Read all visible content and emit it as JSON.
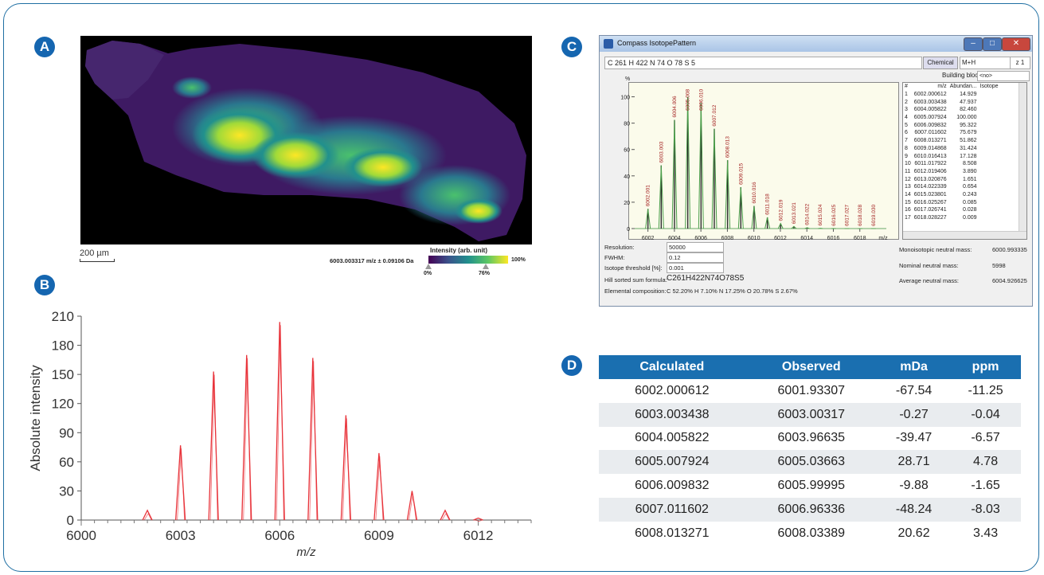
{
  "panel_labels": {
    "a": "A",
    "b": "B",
    "c": "C",
    "d": "D"
  },
  "panel_a": {
    "scale_bar": "200 µm",
    "colorbar_title": "Intensity (arb. unit)",
    "mz_label": "6003.003317 m/z ± 0.09106 Da",
    "tick_min": "0%",
    "tick_mid": "76%",
    "tick_max": "100%",
    "colormap": [
      "#440154",
      "#3b528b",
      "#21908d",
      "#5dc863",
      "#fde725"
    ]
  },
  "chart_data": {
    "type": "line",
    "xlabel": "m/z",
    "ylabel": "Absolute intensity",
    "xlim": [
      6000,
      6013.6
    ],
    "ylim": [
      0,
      210
    ],
    "xticks": [
      "6000",
      "6003",
      "6006",
      "6009",
      "6012"
    ],
    "yticks": [
      "0",
      "30",
      "60",
      "90",
      "120",
      "150",
      "180",
      "210"
    ],
    "color": "#e8333a",
    "series": [
      {
        "x": [
          6002.0,
          6003.0,
          6004.0,
          6005.0,
          6006.0,
          6007.0,
          6008.0,
          6009.0,
          6010.0,
          6011.0,
          6012.0
        ],
        "values": [
          10,
          77,
          153,
          170,
          204,
          167,
          108,
          69,
          30,
          10,
          2
        ]
      }
    ]
  },
  "isotope_window": {
    "title": "Compass IsotopePattern",
    "formula": "C 261 H 422 N 74 O 78 S 5",
    "chemical_button": "Chemical",
    "adduct": "M+H",
    "charge_label": "z",
    "charge": "1",
    "building_block_label": "Building block:",
    "building_block_value": "<no>",
    "plot_ylabel": "%",
    "plot_xlabel": "m/z",
    "plot_xticks": [
      "6002",
      "6004",
      "6006",
      "6008",
      "6010",
      "6012",
      "6014",
      "6016",
      "6018"
    ],
    "plot_yticks": [
      "0",
      "20",
      "40",
      "60",
      "80",
      "100"
    ],
    "stick_labels": [
      "6002.001",
      "6003.003",
      "6004.006",
      "6005.008",
      "6006.010",
      "6007.012",
      "6008.013",
      "6009.015",
      "6010.016",
      "6011.018",
      "6012.019",
      "6013.021",
      "6014.022",
      "6015.024",
      "6016.025",
      "6017.027",
      "6018.028",
      "6019.030"
    ],
    "stick_abundances": [
      14.929,
      47.937,
      82.46,
      100.0,
      95.322,
      75.679,
      51.862,
      31.424,
      17.128,
      8.508,
      3.89,
      1.651,
      0.654,
      0.243,
      0.085,
      0.028,
      0.009,
      0.003
    ],
    "list_headers": [
      "#",
      "m/z",
      "Abundan...",
      "Isotope"
    ],
    "list_rows": [
      [
        "1",
        "6002.000612",
        "14.929"
      ],
      [
        "2",
        "6003.003438",
        "47.937"
      ],
      [
        "3",
        "6004.005822",
        "82.460"
      ],
      [
        "4",
        "6005.007924",
        "100.000"
      ],
      [
        "5",
        "6006.009832",
        "95.322"
      ],
      [
        "6",
        "6007.011602",
        "75.679"
      ],
      [
        "7",
        "6008.013271",
        "51.862"
      ],
      [
        "8",
        "6009.014868",
        "31.424"
      ],
      [
        "9",
        "6010.016413",
        "17.128"
      ],
      [
        "10",
        "6011.017922",
        "8.508"
      ],
      [
        "11",
        "6012.019406",
        "3.890"
      ],
      [
        "12",
        "6013.020876",
        "1.651"
      ],
      [
        "13",
        "6014.022339",
        "0.654"
      ],
      [
        "14",
        "6015.023801",
        "0.243"
      ],
      [
        "15",
        "6016.025267",
        "0.085"
      ],
      [
        "16",
        "6017.026741",
        "0.028"
      ],
      [
        "17",
        "6018.028227",
        "0.009"
      ]
    ],
    "params": {
      "resolution_label": "Resolution:",
      "resolution": "50000",
      "fwhm_label": "FWHM:",
      "fwhm": "0.12",
      "threshold_label": "Isotope threshold [%]:",
      "threshold": "0.001",
      "hill_label": "Hill sorted sum formula:",
      "hill_formula": "C261H422N74O78S5",
      "elemental_label": "Elemental composition:",
      "elemental": "C 52.20% H 7.10% N 17.25% O 20.78% S 2.67%"
    },
    "info": {
      "mono_label": "Monoisotopic neutral mass:",
      "mono": "6000.993335",
      "nominal_label": "Nominal neutral mass:",
      "nominal": "5998",
      "average_label": "Average neutral mass:",
      "average": "6004.926625"
    }
  },
  "mass_table": {
    "headers": [
      "Calculated",
      "Observed",
      "mDa",
      "ppm"
    ],
    "rows": [
      [
        "6002.000612",
        "6001.93307",
        "-67.54",
        "-11.25"
      ],
      [
        "6003.003438",
        "6003.00317",
        "-0.27",
        "-0.04"
      ],
      [
        "6004.005822",
        "6003.96635",
        "-39.47",
        "-6.57"
      ],
      [
        "6005.007924",
        "6005.03663",
        "28.71",
        "4.78"
      ],
      [
        "6006.009832",
        "6005.99995",
        "-9.88",
        "-1.65"
      ],
      [
        "6007.011602",
        "6006.96336",
        "-48.24",
        "-8.03"
      ],
      [
        "6008.013271",
        "6008.03389",
        "20.62",
        "3.43"
      ]
    ]
  }
}
